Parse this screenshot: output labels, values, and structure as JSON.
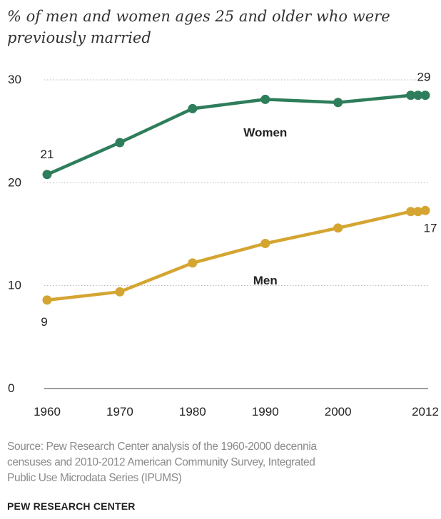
{
  "title_lines": [
    "% of men and women ages 25 and older who were",
    "previously married"
  ],
  "source_lines": [
    "Source: Pew Research Center analysis of the 1960-2000 decennia",
    "censuses and 2010-2012 American Community Survey, Integrated",
    "Public Use Microdata Series (IPUMS)"
  ],
  "brand": "PEW RESEARCH CENTER",
  "chart_data": {
    "type": "line",
    "title": "% of men and women ages 25 and older who were previously married",
    "xlabel": "",
    "ylabel": "",
    "x_ticks": [
      1960,
      1970,
      1980,
      1990,
      2000,
      2012
    ],
    "y_ticks": [
      0,
      10,
      20,
      30
    ],
    "ylim": [
      0,
      30
    ],
    "grid": true,
    "series": [
      {
        "name": "Women",
        "color": "#2e7d5b",
        "x": [
          1960,
          1970,
          1980,
          1990,
          2000,
          2010,
          2011,
          2012
        ],
        "values": [
          20.8,
          23.9,
          27.2,
          28.1,
          27.8,
          28.5,
          28.5,
          28.5
        ],
        "start_label": "21",
        "end_label": "29"
      },
      {
        "name": "Men",
        "color": "#d4a531",
        "x": [
          1960,
          1970,
          1980,
          1990,
          2000,
          2010,
          2011,
          2012
        ],
        "values": [
          8.6,
          9.4,
          12.2,
          14.1,
          15.6,
          17.2,
          17.2,
          17.3
        ],
        "start_label": "9",
        "end_label": "17"
      }
    ]
  }
}
